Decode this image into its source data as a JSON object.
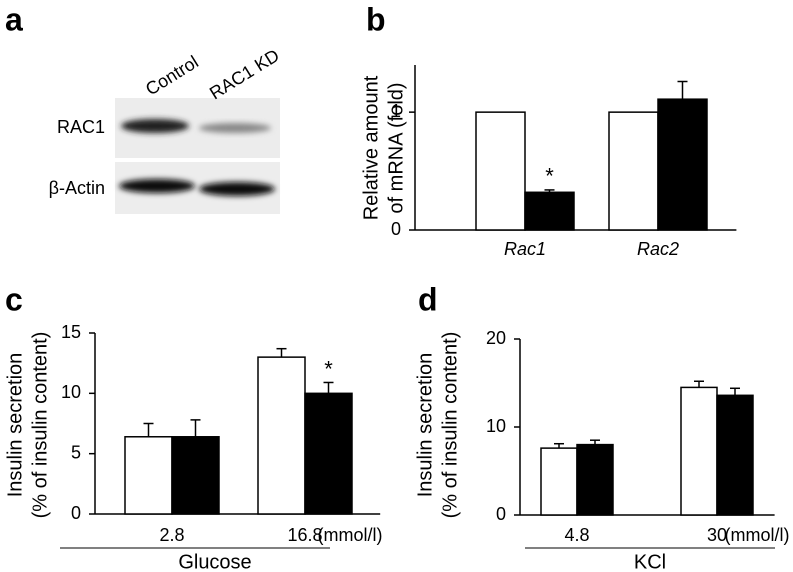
{
  "panel_labels": [
    "a",
    "b",
    "c",
    "d"
  ],
  "blot": {
    "lanes": [
      "Control",
      "RAC1 KD"
    ],
    "rows": [
      "RAC1",
      "β-Actin"
    ]
  },
  "chart_data": [
    {
      "type": "bar",
      "ylabel": [
        "Relative amount",
        "of mRNA (fold)"
      ],
      "categories": [
        "Rac1",
        "Rac2"
      ],
      "italic_categories": true,
      "series": [
        {
          "color": "#ffffff",
          "values": [
            1.0,
            1.0
          ]
        },
        {
          "color": "#000000",
          "values": [
            0.32,
            1.11
          ],
          "errors": [
            0.02,
            0.15
          ]
        }
      ],
      "ylim": [
        0,
        1.4
      ],
      "yticks": [
        0,
        1
      ],
      "annotations": [
        {
          "text": "*",
          "series": 1,
          "index": 0
        }
      ]
    },
    {
      "type": "bar",
      "ylabel": [
        "Insulin secretion",
        "(% of insulin content)"
      ],
      "categories": [
        "2.8",
        "16.8"
      ],
      "unit": "(mmol/l)",
      "group": "Glucose",
      "series": [
        {
          "color": "#ffffff",
          "values": [
            6.4,
            13.0
          ],
          "errors": [
            1.1,
            0.7
          ]
        },
        {
          "color": "#000000",
          "values": [
            6.4,
            10.0
          ],
          "errors": [
            1.4,
            0.9
          ]
        }
      ],
      "ylim": [
        0,
        15
      ],
      "yticks": [
        0,
        5,
        10,
        15
      ],
      "annotations": [
        {
          "text": "*",
          "series": 1,
          "index": 1
        }
      ]
    },
    {
      "type": "bar",
      "ylabel": [
        "Insulin secretion",
        "(% of insulin content)"
      ],
      "categories": [
        "4.8",
        "30"
      ],
      "unit": "(mmol/l)",
      "group": "KCl",
      "series": [
        {
          "color": "#ffffff",
          "values": [
            7.6,
            14.5
          ],
          "errors": [
            0.5,
            0.7
          ]
        },
        {
          "color": "#000000",
          "values": [
            8.0,
            13.6
          ],
          "errors": [
            0.5,
            0.8
          ]
        }
      ],
      "ylim": [
        0,
        20
      ],
      "yticks": [
        0,
        10,
        20
      ]
    }
  ]
}
